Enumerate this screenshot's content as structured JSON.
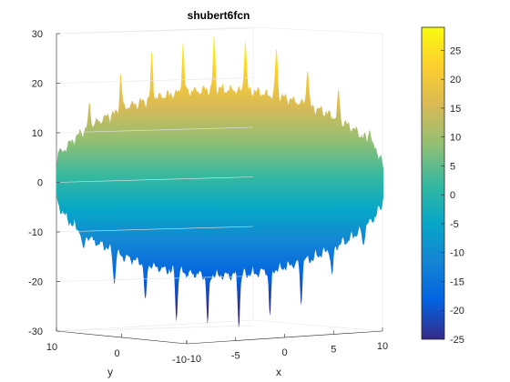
{
  "chart_data": {
    "type": "surface",
    "title": "shubert6fcn",
    "xlabel": "x",
    "ylabel": "y",
    "zlabel": "",
    "xlim": [
      -10,
      10
    ],
    "ylim": [
      -10,
      10
    ],
    "zlim": [
      -30,
      30
    ],
    "x_ticks": [
      "-10",
      "-5",
      "0",
      "5",
      "10"
    ],
    "y_ticks": [
      "10",
      "0",
      "-10"
    ],
    "z_ticks": [
      "30",
      "20",
      "10",
      "0",
      "-10",
      "-20",
      "-30"
    ],
    "colorbar": {
      "range": [
        -25,
        29
      ],
      "ticks": [
        "25",
        "20",
        "15",
        "10",
        "5",
        "0",
        "-5",
        "-10",
        "-15",
        "-20",
        "-25"
      ],
      "colormap": [
        "#352a87",
        "#0363e1",
        "#1485d4",
        "#06a7c6",
        "#38b99e",
        "#92bf73",
        "#d9ba56",
        "#fcce2e",
        "#f9fb0e"
      ]
    },
    "surface_value_range": [
      -26,
      29
    ],
    "grid": true,
    "view": "3d"
  }
}
